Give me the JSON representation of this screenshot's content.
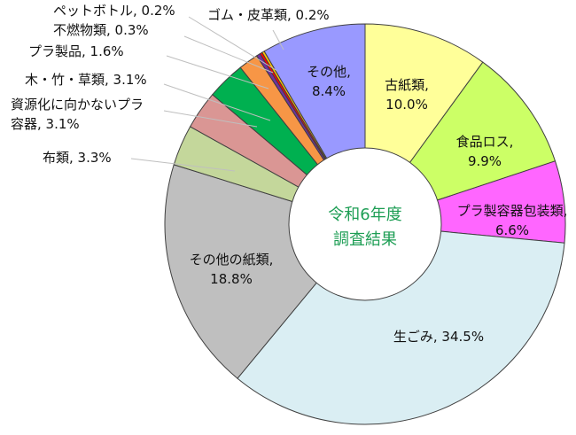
{
  "chart_data": {
    "type": "pie",
    "donut": true,
    "center_label": [
      "令和6年度",
      "調査結果"
    ],
    "slices": [
      {
        "name": "古紙類",
        "value": 10.0,
        "label_lines": [
          "古紙類,",
          "10.0%"
        ],
        "color": "#ffff99"
      },
      {
        "name": "食品ロス",
        "value": 9.9,
        "label_lines": [
          "食品ロス,",
          "9.9%"
        ],
        "color": "#ccff66"
      },
      {
        "name": "プラ製容器包装類",
        "value": 6.6,
        "label_lines": [
          "プラ製容器包装類,",
          "6.6%"
        ],
        "color": "#ff66ff"
      },
      {
        "name": "生ごみ",
        "value": 34.5,
        "label_lines": [
          "生ごみ, 34.5%"
        ],
        "color": "#daeef3"
      },
      {
        "name": "その他の紙類",
        "value": 18.8,
        "label_lines": [
          "その他の紙類,",
          "18.8%"
        ],
        "color": "#bfbfbf"
      },
      {
        "name": "布類",
        "value": 3.3,
        "label_lines": [
          "布類, 3.3%"
        ],
        "color": "#c4d79b"
      },
      {
        "name": "資源化に向かないプラ容器",
        "value": 3.1,
        "label_lines": [
          "資源化に向かないプラ",
          "容器, 3.1%"
        ],
        "color": "#da9694"
      },
      {
        "name": "木・竹・草類",
        "value": 3.1,
        "label_lines": [
          "木・竹・草類, 3.1%"
        ],
        "color": "#00b050"
      },
      {
        "name": "プラ製品",
        "value": 1.6,
        "label_lines": [
          "プラ製品, 1.6%"
        ],
        "color": "#f79646"
      },
      {
        "name": "不燃物類",
        "value": 0.3,
        "label_lines": [
          "不燃物類, 0.3%"
        ],
        "color": "#7030a0"
      },
      {
        "name": "ペットボトル",
        "value": 0.2,
        "label_lines": [
          "ペットボトル, 0.2%"
        ],
        "color": "#ff0000"
      },
      {
        "name": "ゴム・皮革類",
        "value": 0.2,
        "label_lines": [
          "ゴム・皮革類, 0.2%"
        ],
        "color": "#ffc000"
      },
      {
        "name": "その他",
        "value": 8.4,
        "label_lines": [
          "その他,",
          "8.4%"
        ],
        "color": "#9999ff"
      }
    ]
  }
}
